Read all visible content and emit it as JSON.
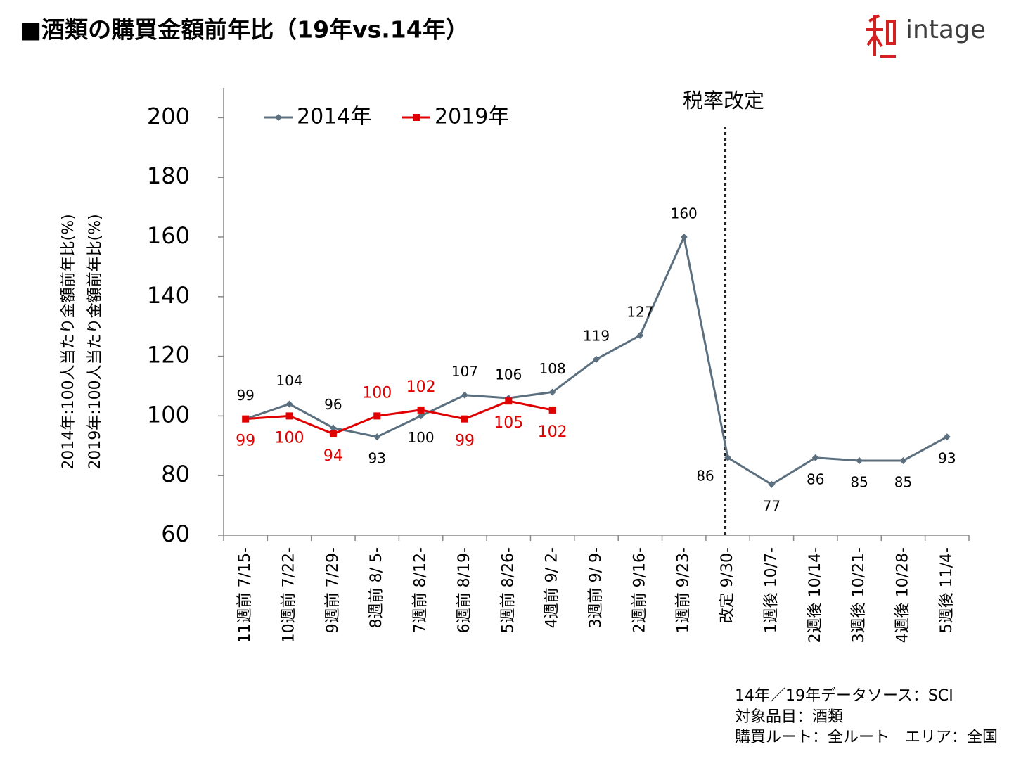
{
  "header": {
    "title": "■酒類の購買金額前年比（19年vs.14年）",
    "logo": "intage"
  },
  "chart_data": {
    "type": "line",
    "y_label_lines": [
      "2014年:100人当たり金額前年比(%)",
      "2019年:100人当たり金額前年比(%)"
    ],
    "categories": [
      "11週前 7/15-",
      "10週前 7/22-",
      "9週前 7/29-",
      "8週前 8/ 5-",
      "7週前 8/12-",
      "6週前 8/19-",
      "5週前 8/26-",
      "4週前 9/ 2-",
      "3週前 9/ 9-",
      "2週前 9/16-",
      "1週前 9/23-",
      "改定 9/30-",
      "1週後 10/7-",
      "2週後 10/14-",
      "3週後 10/21-",
      "4週後 10/28-",
      "5週後 11/4-"
    ],
    "series": [
      {
        "name": "2014年",
        "color": "#5b6f7f",
        "marker": "diamond",
        "label_color": "#000000",
        "values": [
          99,
          104,
          96,
          93,
          100,
          107,
          106,
          108,
          119,
          127,
          160,
          86,
          77,
          86,
          85,
          85,
          93
        ]
      },
      {
        "name": "2019年",
        "color": "#e00000",
        "marker": "square",
        "label_color": "#e00000",
        "values": [
          99,
          100,
          94,
          100,
          102,
          99,
          105,
          102,
          null,
          null,
          null,
          null,
          null,
          null,
          null,
          null,
          null
        ]
      }
    ],
    "ylim": [
      60,
      210
    ],
    "yticks": [
      60,
      80,
      100,
      120,
      140,
      160,
      180,
      200
    ],
    "grid": false,
    "legend": "top-left",
    "annotation": {
      "text": "税率改定",
      "category": "改定 9/30-"
    }
  },
  "notes": [
    "14年／19年データソース：SCI",
    "対象品目：酒類",
    "購買ルート：全ルート　エリア：全国"
  ]
}
